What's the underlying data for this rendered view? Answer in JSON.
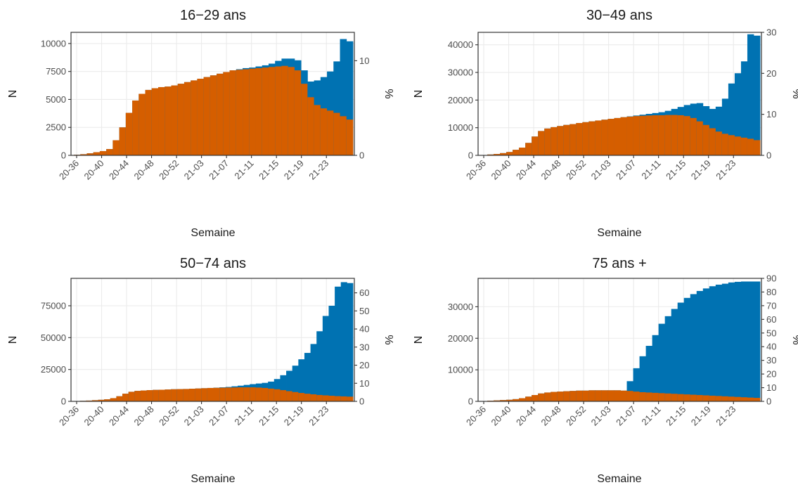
{
  "colors": {
    "blue": "#0072B2",
    "orange": "#D55E00",
    "grid": "#EBEBEB",
    "frame": "#333333"
  },
  "chart_data": [
    {
      "type": "bar",
      "title": "16−29 ans",
      "xlabel": "Semaine",
      "ylabel_left": "N",
      "ylabel_right": "%",
      "x_tick_labels": [
        "20-36",
        "20-40",
        "20-44",
        "20-48",
        "20-52",
        "21-03",
        "21-07",
        "21-11",
        "21-15",
        "21-19",
        "21-23"
      ],
      "ylim_left": [
        0,
        11000
      ],
      "y_ticks_left": [
        0,
        2500,
        5000,
        7500,
        10000
      ],
      "ylim_right": [
        0,
        13
      ],
      "y_ticks_right": [
        0,
        10
      ],
      "series": [
        {
          "name": "N",
          "color": "blue",
          "values": [
            50,
            100,
            180,
            280,
            380,
            560,
            1350,
            2500,
            3800,
            4900,
            5500,
            5850,
            6000,
            6100,
            6150,
            6250,
            6400,
            6550,
            6700,
            6850,
            7000,
            7150,
            7300,
            7450,
            7600,
            7700,
            7800,
            7850,
            7950,
            8050,
            8200,
            8450,
            8650,
            8650,
            8500,
            7600,
            6600,
            6700,
            7000,
            7500,
            8400,
            10400,
            10200
          ]
        },
        {
          "name": "%",
          "color": "orange",
          "values": [
            50,
            100,
            180,
            280,
            380,
            560,
            1350,
            2500,
            3800,
            4900,
            5500,
            5850,
            6000,
            6100,
            6150,
            6250,
            6400,
            6550,
            6700,
            6850,
            7000,
            7150,
            7300,
            7450,
            7600,
            7650,
            7700,
            7750,
            7800,
            7850,
            7900,
            7950,
            8000,
            7900,
            7600,
            6400,
            5200,
            4500,
            4200,
            4000,
            3800,
            3500,
            3200
          ]
        }
      ]
    },
    {
      "type": "bar",
      "title": "30−49 ans",
      "xlabel": "Semaine",
      "ylabel_left": "N",
      "ylabel_right": "%",
      "x_tick_labels": [
        "20-36",
        "20-40",
        "20-44",
        "20-48",
        "20-52",
        "21-03",
        "21-07",
        "21-11",
        "21-15",
        "21-19",
        "21-23"
      ],
      "ylim_left": [
        0,
        44500
      ],
      "y_ticks_left": [
        0,
        10000,
        20000,
        30000,
        40000
      ],
      "ylim_right": [
        0,
        30
      ],
      "y_ticks_right": [
        0,
        10,
        20,
        30
      ],
      "series": [
        {
          "name": "N",
          "color": "blue",
          "values": [
            100,
            300,
            500,
            800,
            1200,
            2000,
            2800,
            4500,
            6800,
            8800,
            9700,
            10200,
            10600,
            11000,
            11300,
            11700,
            12000,
            12300,
            12600,
            12900,
            13200,
            13500,
            13800,
            14100,
            14400,
            14700,
            15000,
            15300,
            15600,
            16100,
            16800,
            17500,
            18200,
            18700,
            18900,
            17800,
            16800,
            17600,
            20500,
            26000,
            29700,
            34000,
            43800,
            43300
          ]
        },
        {
          "name": "%",
          "color": "orange",
          "values": [
            100,
            300,
            500,
            800,
            1200,
            2000,
            2800,
            4500,
            6800,
            8800,
            9700,
            10200,
            10600,
            11000,
            11300,
            11700,
            12000,
            12300,
            12600,
            12900,
            13200,
            13500,
            13800,
            14000,
            14200,
            14300,
            14400,
            14500,
            14500,
            14600,
            14600,
            14500,
            14200,
            13500,
            12300,
            11000,
            9800,
            8600,
            7800,
            7300,
            6800,
            6400,
            6000,
            5500
          ]
        }
      ]
    },
    {
      "type": "bar",
      "title": "50−74 ans",
      "xlabel": "Semaine",
      "ylabel_left": "N",
      "ylabel_right": "%",
      "x_tick_labels": [
        "20-36",
        "20-40",
        "20-44",
        "20-48",
        "20-52",
        "21-03",
        "21-07",
        "21-11",
        "21-15",
        "21-19",
        "21-23"
      ],
      "ylim_left": [
        0,
        96500
      ],
      "y_ticks_left": [
        0,
        25000,
        50000,
        75000
      ],
      "ylim_right": [
        0,
        68
      ],
      "y_ticks_right": [
        0,
        10,
        20,
        30,
        40,
        50,
        60
      ],
      "series": [
        {
          "name": "N",
          "color": "blue",
          "values": [
            200,
            400,
            600,
            900,
            1200,
            1600,
            2500,
            4000,
            6000,
            7500,
            8200,
            8500,
            8800,
            9000,
            9100,
            9300,
            9500,
            9600,
            9700,
            9900,
            10100,
            10300,
            10500,
            10700,
            11000,
            11300,
            11800,
            12300,
            12900,
            13500,
            14000,
            14500,
            15500,
            17500,
            20500,
            24000,
            28000,
            33000,
            38000,
            45000,
            55000,
            67000,
            75000,
            90000,
            93500,
            92800
          ]
        },
        {
          "name": "%",
          "color": "orange",
          "values": [
            200,
            400,
            600,
            900,
            1200,
            1600,
            2500,
            4000,
            6000,
            7500,
            8200,
            8500,
            8800,
            9000,
            9100,
            9300,
            9500,
            9600,
            9700,
            9900,
            10100,
            10300,
            10500,
            10600,
            10700,
            10800,
            10900,
            11000,
            11000,
            11000,
            10800,
            10500,
            10000,
            9500,
            8800,
            8000,
            7300,
            6600,
            6000,
            5500,
            5000,
            4700,
            4400,
            4100,
            3900,
            3700
          ]
        }
      ]
    },
    {
      "type": "bar",
      "title": "75 ans +",
      "xlabel": "Semaine",
      "ylabel_left": "N",
      "ylabel_right": "%",
      "x_tick_labels": [
        "20-36",
        "20-40",
        "20-44",
        "20-48",
        "20-52",
        "21-03",
        "21-07",
        "21-11",
        "21-15",
        "21-19",
        "21-23"
      ],
      "ylim_left": [
        0,
        39000
      ],
      "y_ticks_left": [
        0,
        10000,
        20000,
        30000
      ],
      "ylim_right": [
        0,
        90
      ],
      "y_ticks_right": [
        0,
        10,
        20,
        30,
        40,
        50,
        60,
        70,
        80,
        90
      ],
      "series": [
        {
          "name": "N",
          "color": "blue",
          "values": [
            100,
            200,
            300,
            400,
            500,
            700,
            1000,
            1500,
            2000,
            2500,
            2800,
            3000,
            3100,
            3200,
            3300,
            3400,
            3400,
            3500,
            3500,
            3500,
            3500,
            3500,
            3400,
            6400,
            10500,
            14300,
            17600,
            21000,
            24600,
            27000,
            29300,
            31300,
            32800,
            34000,
            35000,
            35800,
            36500,
            37000,
            37300,
            37700,
            37900,
            38000,
            38000,
            38000
          ]
        },
        {
          "name": "%",
          "color": "orange",
          "values": [
            100,
            200,
            300,
            400,
            500,
            700,
            1000,
            1500,
            2000,
            2500,
            2800,
            3000,
            3100,
            3200,
            3300,
            3400,
            3400,
            3500,
            3500,
            3500,
            3500,
            3500,
            3400,
            3300,
            3100,
            2900,
            2800,
            2700,
            2600,
            2500,
            2400,
            2300,
            2200,
            2100,
            2000,
            1900,
            1800,
            1700,
            1600,
            1500,
            1400,
            1300,
            1200,
            1100
          ]
        }
      ]
    }
  ]
}
